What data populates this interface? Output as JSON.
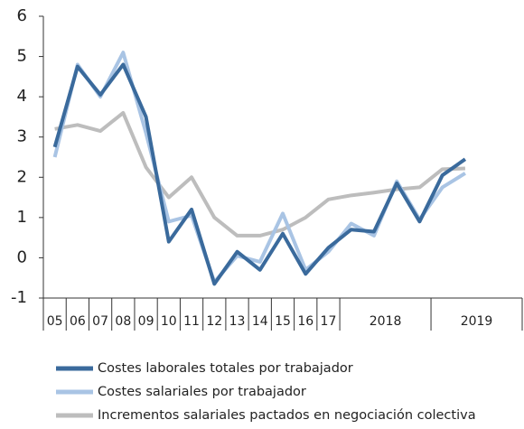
{
  "chart_data": {
    "type": "line",
    "categories": [
      "05",
      "06",
      "07",
      "08",
      "09",
      "10",
      "11",
      "12",
      "13",
      "14",
      "15",
      "16",
      "17",
      null,
      null,
      null,
      null,
      null,
      null,
      null,
      null
    ],
    "groups": [
      {
        "label": "2018",
        "count": 4
      },
      {
        "label": "2019",
        "count": 4
      }
    ],
    "series": [
      {
        "name": "Costes laborales totales por trabajador",
        "color": "#3a6a9c",
        "values": [
          2.75,
          4.75,
          4.05,
          4.8,
          3.5,
          0.4,
          1.2,
          -0.65,
          0.15,
          -0.3,
          0.6,
          -0.4,
          0.25,
          0.7,
          0.65,
          1.85,
          0.9,
          2.05,
          2.45,
          null,
          null
        ]
      },
      {
        "name": "Costes salariales por trabajador",
        "color": "#a9c4e4",
        "values": [
          2.5,
          4.8,
          4.0,
          5.1,
          3.1,
          0.9,
          1.05,
          -0.6,
          0.05,
          -0.1,
          1.1,
          -0.3,
          0.15,
          0.85,
          0.55,
          1.9,
          0.95,
          1.75,
          2.1,
          null,
          null
        ]
      },
      {
        "name": "Incrementos salariales pactados en negociación colectiva",
        "color": "#bdbdbd",
        "values": [
          3.2,
          3.3,
          3.15,
          3.6,
          2.25,
          1.5,
          2.0,
          1.0,
          0.55,
          0.55,
          0.7,
          1.0,
          1.45,
          1.55,
          1.62,
          1.7,
          1.75,
          2.2,
          2.22,
          null,
          null
        ]
      }
    ],
    "ylim": [
      -1,
      6
    ],
    "yticks": [
      -1,
      0,
      1,
      2,
      3,
      4,
      5,
      6
    ],
    "grid": false
  }
}
